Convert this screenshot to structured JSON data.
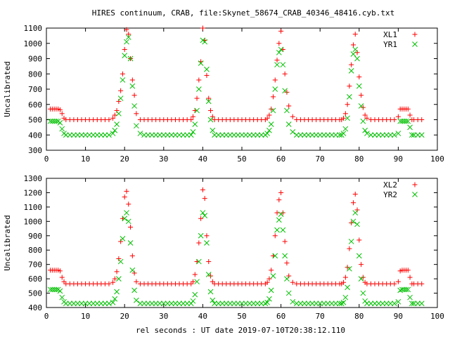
{
  "title": "HIRES continuum, CRAB, file:Skynet_58674_CRAB_40346_48416.cyb.txt",
  "xlabel_bottom": "rel seconds : UT date 2019-07-10T20:38:12.110",
  "colors": {
    "series_red": "#ff0000",
    "series_green": "#00c000",
    "axis": "#000000"
  },
  "chart_data": [
    {
      "type": "scatter",
      "title": "HIRES continuum, CRAB, file:Skynet_58674_CRAB_40346_48416.cyb.txt",
      "xlabel": "",
      "ylabel": "Uncalibrated",
      "xlim": [
        0,
        100
      ],
      "ylim": [
        300,
        1100
      ],
      "xticks": [
        0,
        10,
        20,
        30,
        40,
        50,
        60,
        70,
        80,
        90,
        100
      ],
      "yticks": [
        300,
        400,
        500,
        600,
        700,
        800,
        900,
        1000,
        1100
      ],
      "legend": "top-right",
      "grid": false,
      "series": [
        {
          "name": "XL1",
          "marker": "plus",
          "color": "#ff0000",
          "x": [
            1,
            1.5,
            2,
            2.5,
            3,
            3.5,
            4,
            4.5,
            5,
            6,
            7,
            8,
            9,
            10,
            11,
            12,
            13,
            14,
            15,
            16,
            17,
            17.5,
            18,
            18.5,
            19,
            19.5,
            20,
            20.5,
            21,
            21.5,
            22,
            22.5,
            23,
            24,
            25,
            26,
            27,
            28,
            29,
            30,
            31,
            32,
            33,
            34,
            35,
            36,
            37,
            37.5,
            38,
            38.5,
            39,
            39.5,
            40,
            40.5,
            41,
            41.5,
            42,
            42.5,
            43,
            44,
            45,
            46,
            47,
            48,
            49,
            50,
            51,
            52,
            53,
            54,
            55,
            56,
            56.5,
            57,
            57.5,
            58,
            58.5,
            59,
            59.5,
            60,
            60.5,
            61,
            61.5,
            62,
            63,
            64,
            65,
            66,
            67,
            68,
            69,
            70,
            71,
            72,
            73,
            74,
            75,
            75.5,
            76,
            76.5,
            77,
            77.5,
            78,
            78.5,
            79,
            79.5,
            80,
            80.5,
            81,
            81.5,
            82,
            83,
            84,
            85,
            86,
            87,
            88,
            89,
            90,
            90.5,
            91,
            91.5,
            92,
            92.5,
            93,
            93.5,
            94,
            95,
            96
          ],
          "y": [
            570,
            570,
            570,
            570,
            570,
            565,
            540,
            510,
            500,
            500,
            500,
            500,
            500,
            500,
            500,
            500,
            500,
            500,
            500,
            500,
            510,
            530,
            560,
            620,
            690,
            800,
            960,
            1090,
            1060,
            900,
            760,
            660,
            540,
            500,
            500,
            500,
            500,
            500,
            500,
            500,
            500,
            500,
            500,
            500,
            500,
            500,
            500,
            520,
            560,
            640,
            760,
            880,
            1100,
            1020,
            790,
            640,
            560,
            520,
            500,
            500,
            500,
            500,
            500,
            500,
            500,
            500,
            500,
            500,
            500,
            500,
            500,
            500,
            510,
            530,
            570,
            650,
            760,
            890,
            1000,
            1080,
            960,
            800,
            680,
            590,
            520,
            500,
            500,
            500,
            500,
            500,
            500,
            500,
            500,
            500,
            500,
            500,
            500,
            500,
            510,
            540,
            600,
            720,
            860,
            990,
            1060,
            940,
            780,
            660,
            580,
            530,
            510,
            500,
            500,
            500,
            500,
            500,
            500,
            500,
            520,
            570,
            570,
            570,
            570,
            570,
            530,
            500,
            500,
            500,
            500
          ]
        },
        {
          "name": "YR1",
          "marker": "cross",
          "color": "#00c000",
          "x": [
            1,
            1.5,
            2,
            2.5,
            3,
            3.5,
            4,
            4.5,
            5,
            6,
            7,
            8,
            9,
            10,
            11,
            12,
            13,
            14,
            15,
            16,
            17,
            17.5,
            18,
            18.5,
            19,
            19.5,
            20,
            20.5,
            21,
            21.5,
            22,
            22.5,
            23,
            24,
            25,
            26,
            27,
            28,
            29,
            30,
            31,
            32,
            33,
            34,
            35,
            36,
            37,
            37.5,
            38,
            38.5,
            39,
            39.5,
            40,
            40.5,
            41,
            41.5,
            42,
            42.5,
            43,
            44,
            45,
            46,
            47,
            48,
            49,
            50,
            51,
            52,
            53,
            54,
            55,
            56,
            56.5,
            57,
            57.5,
            58,
            58.5,
            59,
            59.5,
            60,
            60.5,
            61,
            61.5,
            62,
            63,
            64,
            65,
            66,
            67,
            68,
            69,
            70,
            71,
            72,
            73,
            74,
            75,
            75.5,
            76,
            76.5,
            77,
            77.5,
            78,
            78.5,
            79,
            79.5,
            80,
            80.5,
            81,
            81.5,
            82,
            83,
            84,
            85,
            86,
            87,
            88,
            89,
            90,
            90.5,
            91,
            91.5,
            92,
            92.5,
            93,
            93.5,
            94,
            95,
            96
          ],
          "y": [
            490,
            490,
            490,
            490,
            490,
            480,
            440,
            410,
            400,
            400,
            400,
            400,
            400,
            400,
            400,
            400,
            400,
            400,
            400,
            400,
            410,
            430,
            470,
            540,
            640,
            760,
            920,
            1010,
            1040,
            900,
            720,
            590,
            460,
            410,
            400,
            400,
            400,
            400,
            400,
            400,
            400,
            400,
            400,
            400,
            400,
            400,
            400,
            420,
            470,
            560,
            700,
            870,
            1020,
            1010,
            830,
            620,
            500,
            430,
            400,
            400,
            400,
            400,
            400,
            400,
            400,
            400,
            400,
            400,
            400,
            400,
            400,
            400,
            410,
            430,
            470,
            560,
            700,
            860,
            940,
            960,
            860,
            690,
            560,
            470,
            420,
            400,
            400,
            400,
            400,
            400,
            400,
            400,
            400,
            400,
            400,
            400,
            400,
            400,
            410,
            440,
            510,
            650,
            820,
            930,
            960,
            900,
            720,
            590,
            490,
            430,
            410,
            400,
            400,
            400,
            400,
            400,
            400,
            400,
            410,
            490,
            490,
            490,
            490,
            490,
            450,
            400,
            400,
            400,
            400
          ]
        }
      ]
    },
    {
      "type": "scatter",
      "title": "",
      "xlabel": "rel seconds : UT date 2019-07-10T20:38:12.110",
      "ylabel": "Uncalibrated",
      "xlim": [
        0,
        100
      ],
      "ylim": [
        400,
        1300
      ],
      "xticks": [
        0,
        10,
        20,
        30,
        40,
        50,
        60,
        70,
        80,
        90,
        100
      ],
      "yticks": [
        400,
        500,
        600,
        700,
        800,
        900,
        1000,
        1100,
        1200,
        1300
      ],
      "legend": "top-right",
      "grid": false,
      "series": [
        {
          "name": "XL2",
          "marker": "plus",
          "color": "#ff0000",
          "x": [
            1,
            1.5,
            2,
            2.5,
            3,
            3.5,
            4,
            4.5,
            5,
            6,
            7,
            8,
            9,
            10,
            11,
            12,
            13,
            14,
            15,
            16,
            17,
            17.5,
            18,
            18.5,
            19,
            19.5,
            20,
            20.5,
            21,
            21.5,
            22,
            22.5,
            23,
            24,
            25,
            26,
            27,
            28,
            29,
            30,
            31,
            32,
            33,
            34,
            35,
            36,
            37,
            37.5,
            38,
            38.5,
            39,
            39.5,
            40,
            40.5,
            41,
            41.5,
            42,
            42.5,
            43,
            44,
            45,
            46,
            47,
            48,
            49,
            50,
            51,
            52,
            53,
            54,
            55,
            56,
            56.5,
            57,
            57.5,
            58,
            58.5,
            59,
            59.5,
            60,
            60.5,
            61,
            61.5,
            62,
            63,
            64,
            65,
            66,
            67,
            68,
            69,
            70,
            71,
            72,
            73,
            74,
            75,
            75.5,
            76,
            76.5,
            77,
            77.5,
            78,
            78.5,
            79,
            79.5,
            80,
            80.5,
            81,
            81.5,
            82,
            83,
            84,
            85,
            86,
            87,
            88,
            89,
            90,
            90.5,
            91,
            91.5,
            92,
            92.5,
            93,
            93.5,
            94,
            95,
            96
          ],
          "y": [
            660,
            660,
            660,
            660,
            660,
            655,
            610,
            580,
            565,
            565,
            565,
            565,
            565,
            565,
            565,
            565,
            565,
            565,
            565,
            565,
            575,
            600,
            650,
            740,
            860,
            1020,
            1170,
            1210,
            1120,
            960,
            760,
            640,
            580,
            565,
            565,
            565,
            565,
            565,
            565,
            565,
            565,
            565,
            565,
            565,
            565,
            565,
            565,
            580,
            630,
            720,
            850,
            1020,
            1220,
            1160,
            900,
            720,
            620,
            580,
            565,
            565,
            565,
            565,
            565,
            565,
            565,
            565,
            565,
            565,
            565,
            565,
            565,
            565,
            575,
            600,
            660,
            760,
            900,
            1060,
            1150,
            1200,
            1060,
            860,
            710,
            620,
            575,
            565,
            565,
            565,
            565,
            565,
            565,
            565,
            565,
            565,
            565,
            565,
            565,
            565,
            575,
            610,
            680,
            810,
            990,
            1130,
            1190,
            1080,
            870,
            700,
            610,
            575,
            565,
            565,
            565,
            565,
            565,
            565,
            565,
            565,
            580,
            655,
            660,
            660,
            660,
            660,
            610,
            565,
            565,
            565,
            565
          ]
        },
        {
          "name": "YR2",
          "marker": "cross",
          "color": "#00c000",
          "x": [
            1,
            1.5,
            2,
            2.5,
            3,
            3.5,
            4,
            4.5,
            5,
            6,
            7,
            8,
            9,
            10,
            11,
            12,
            13,
            14,
            15,
            16,
            17,
            17.5,
            18,
            18.5,
            19,
            19.5,
            20,
            20.5,
            21,
            21.5,
            22,
            22.5,
            23,
            24,
            25,
            26,
            27,
            28,
            29,
            30,
            31,
            32,
            33,
            34,
            35,
            36,
            37,
            37.5,
            38,
            38.5,
            39,
            39.5,
            40,
            40.5,
            41,
            41.5,
            42,
            42.5,
            43,
            44,
            45,
            46,
            47,
            48,
            49,
            50,
            51,
            52,
            53,
            54,
            55,
            56,
            56.5,
            57,
            57.5,
            58,
            58.5,
            59,
            59.5,
            60,
            60.5,
            61,
            61.5,
            62,
            63,
            64,
            65,
            66,
            67,
            68,
            69,
            70,
            71,
            72,
            73,
            74,
            75,
            75.5,
            76,
            76.5,
            77,
            77.5,
            78,
            78.5,
            79,
            79.5,
            80,
            80.5,
            81,
            81.5,
            82,
            83,
            84,
            85,
            86,
            87,
            88,
            89,
            90,
            90.5,
            91,
            91.5,
            92,
            92.5,
            93,
            93.5,
            94,
            95,
            96
          ],
          "y": [
            525,
            525,
            525,
            525,
            525,
            515,
            470,
            440,
            428,
            428,
            428,
            428,
            428,
            428,
            428,
            428,
            428,
            428,
            428,
            428,
            435,
            460,
            510,
            600,
            720,
            880,
            1020,
            1060,
            1000,
            850,
            660,
            520,
            450,
            428,
            428,
            428,
            428,
            428,
            428,
            428,
            428,
            428,
            428,
            428,
            428,
            428,
            428,
            445,
            490,
            580,
            720,
            900,
            1060,
            1040,
            850,
            630,
            510,
            450,
            428,
            428,
            428,
            428,
            428,
            428,
            428,
            428,
            428,
            428,
            428,
            428,
            428,
            428,
            435,
            460,
            520,
            620,
            760,
            940,
            1010,
            1050,
            940,
            760,
            600,
            500,
            440,
            428,
            428,
            428,
            428,
            428,
            428,
            428,
            428,
            428,
            428,
            428,
            428,
            428,
            435,
            470,
            540,
            670,
            860,
            1000,
            1060,
            980,
            760,
            600,
            500,
            445,
            428,
            428,
            428,
            428,
            428,
            428,
            428,
            428,
            440,
            520,
            525,
            525,
            525,
            525,
            470,
            428,
            428,
            428,
            428
          ]
        }
      ]
    }
  ]
}
